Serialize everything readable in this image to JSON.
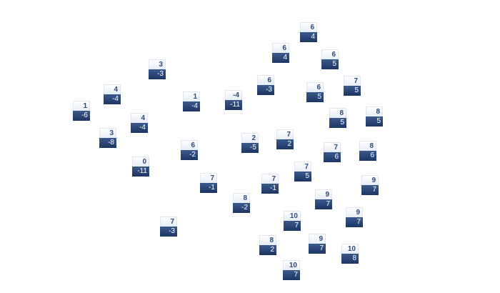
{
  "tiles": [
    {
      "top": "1",
      "bottom": "-6"
    },
    {
      "top": "4",
      "bottom": "-4"
    },
    {
      "top": "3",
      "bottom": "-3"
    },
    {
      "top": "3",
      "bottom": "-8"
    },
    {
      "top": "4",
      "bottom": "-4"
    },
    {
      "top": "0",
      "bottom": "-11"
    },
    {
      "top": "1",
      "bottom": "-4"
    },
    {
      "top": "-4",
      "bottom": "-11"
    },
    {
      "top": "6",
      "bottom": "-2"
    },
    {
      "top": "7",
      "bottom": "-1"
    },
    {
      "top": "7",
      "bottom": "-3"
    },
    {
      "top": "2",
      "bottom": "-5"
    },
    {
      "top": "6",
      "bottom": "-3"
    },
    {
      "top": "6",
      "bottom": "4"
    },
    {
      "top": "6",
      "bottom": "4"
    },
    {
      "top": "6",
      "bottom": "5"
    },
    {
      "top": "6",
      "bottom": "5"
    },
    {
      "top": "7",
      "bottom": "5"
    },
    {
      "top": "8",
      "bottom": "5"
    },
    {
      "top": "8",
      "bottom": "5"
    },
    {
      "top": "7",
      "bottom": "2"
    },
    {
      "top": "7",
      "bottom": "6"
    },
    {
      "top": "8",
      "bottom": "6"
    },
    {
      "top": "7",
      "bottom": "5"
    },
    {
      "top": "7",
      "bottom": "-1"
    },
    {
      "top": "8",
      "bottom": "-2"
    },
    {
      "top": "9",
      "bottom": "7"
    },
    {
      "top": "9",
      "bottom": "7"
    },
    {
      "top": "9",
      "bottom": "7"
    },
    {
      "top": "10",
      "bottom": "7"
    },
    {
      "top": "8",
      "bottom": "2"
    },
    {
      "top": "9",
      "bottom": "7"
    },
    {
      "top": "10",
      "bottom": "8"
    },
    {
      "top": "10",
      "bottom": "7"
    }
  ],
  "colors": {
    "tile_top": "#eef3fa",
    "tile_bottom": "#1f3a68",
    "top_text": "#2b4a7e",
    "bottom_text": "#ffffff"
  }
}
